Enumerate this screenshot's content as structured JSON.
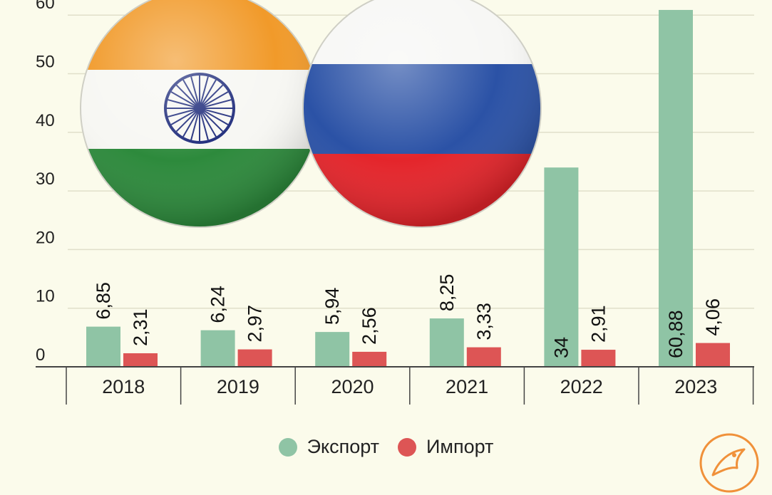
{
  "chart_data": {
    "type": "bar",
    "categories": [
      "2018",
      "2019",
      "2020",
      "2021",
      "2022",
      "2023"
    ],
    "series": [
      {
        "name": "Экспорт",
        "values": [
          6.85,
          6.24,
          5.94,
          8.25,
          34,
          60.88
        ],
        "labels": [
          "6,85",
          "6,24",
          "5,94",
          "8,25",
          "34",
          "60,88"
        ],
        "color": "#8fc4a5"
      },
      {
        "name": "Импорт",
        "values": [
          2.31,
          2.97,
          2.56,
          3.33,
          2.91,
          4.06
        ],
        "labels": [
          "2,31",
          "2,97",
          "2,56",
          "3,33",
          "2,91",
          "4,06"
        ],
        "color": "#dd5555"
      }
    ],
    "yticks": [
      "0",
      "10",
      "20",
      "30",
      "40",
      "50",
      "60"
    ],
    "ylim": [
      0,
      60
    ],
    "grid": true,
    "legend": "bottom-center"
  },
  "colors": {
    "background": "#fbfbeb",
    "grid": "#e0dfca",
    "logo": "#f0913a"
  },
  "icons": {
    "flag_india": "india-flag-icon",
    "flag_russia": "russia-flag-icon",
    "logo": "bird-logo-icon"
  }
}
